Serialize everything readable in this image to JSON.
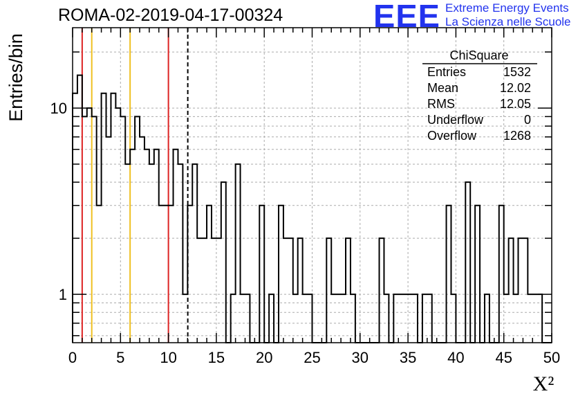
{
  "header": {
    "title": "ROMA-02-2019-04-17-00324",
    "logo_mark": "EEE",
    "logo_line1": "Extreme Energy Events",
    "logo_line2": "La Scienza nelle Scuole"
  },
  "stats": {
    "name": "ChiSquare",
    "rows": [
      {
        "label": "Entries",
        "value": "1532"
      },
      {
        "label": "Mean",
        "value": "12.02"
      },
      {
        "label": "RMS",
        "value": "12.05"
      },
      {
        "label": "Underflow",
        "value": "0"
      },
      {
        "label": "Overflow",
        "value": "1268"
      }
    ]
  },
  "colors": {
    "histogram": "#000000",
    "red_line": "#dd2222",
    "yellow_line": "#f0c020",
    "grid": "#aaaaaa",
    "logo": "#2233ee"
  },
  "chart_data": {
    "type": "histogram",
    "xlabel": "X²",
    "ylabel": "Entries/bin",
    "xlim": [
      0,
      50
    ],
    "ylim": [
      0.55,
      27
    ],
    "yscale": "log",
    "grid": true,
    "x_ticks": [
      "0",
      "5",
      "10",
      "15",
      "20",
      "25",
      "30",
      "35",
      "40",
      "45",
      "50"
    ],
    "y_ticks": [
      "1",
      "10"
    ],
    "bin_width": 0.5,
    "values": [
      12,
      15,
      9,
      10,
      9,
      3,
      12,
      7,
      12,
      10,
      9,
      5,
      6,
      9,
      7,
      6,
      5,
      6,
      3,
      3,
      3,
      6,
      5,
      1,
      3,
      5,
      2,
      2,
      3,
      2,
      2,
      4,
      0,
      1,
      5,
      1,
      1,
      0,
      0,
      3,
      0,
      1,
      0,
      3,
      2,
      2,
      1,
      2,
      1,
      1,
      0,
      0,
      0,
      2,
      1,
      1,
      1,
      2,
      1,
      0,
      0,
      0,
      0,
      0,
      2,
      1,
      0,
      1,
      1,
      1,
      1,
      1,
      0,
      1,
      1,
      0,
      0,
      0,
      3,
      1,
      0,
      0,
      4,
      0,
      3,
      0,
      1,
      0,
      0,
      3,
      1,
      2,
      1,
      2,
      2,
      1,
      1,
      1,
      0,
      0
    ],
    "vertical_lines": [
      {
        "x": 1,
        "color": "red",
        "style": "solid"
      },
      {
        "x": 2,
        "color": "yellow",
        "style": "solid"
      },
      {
        "x": 6,
        "color": "yellow",
        "style": "solid"
      },
      {
        "x": 10,
        "color": "red",
        "style": "solid"
      },
      {
        "x": 12.02,
        "color": "black",
        "style": "dashed"
      }
    ]
  }
}
